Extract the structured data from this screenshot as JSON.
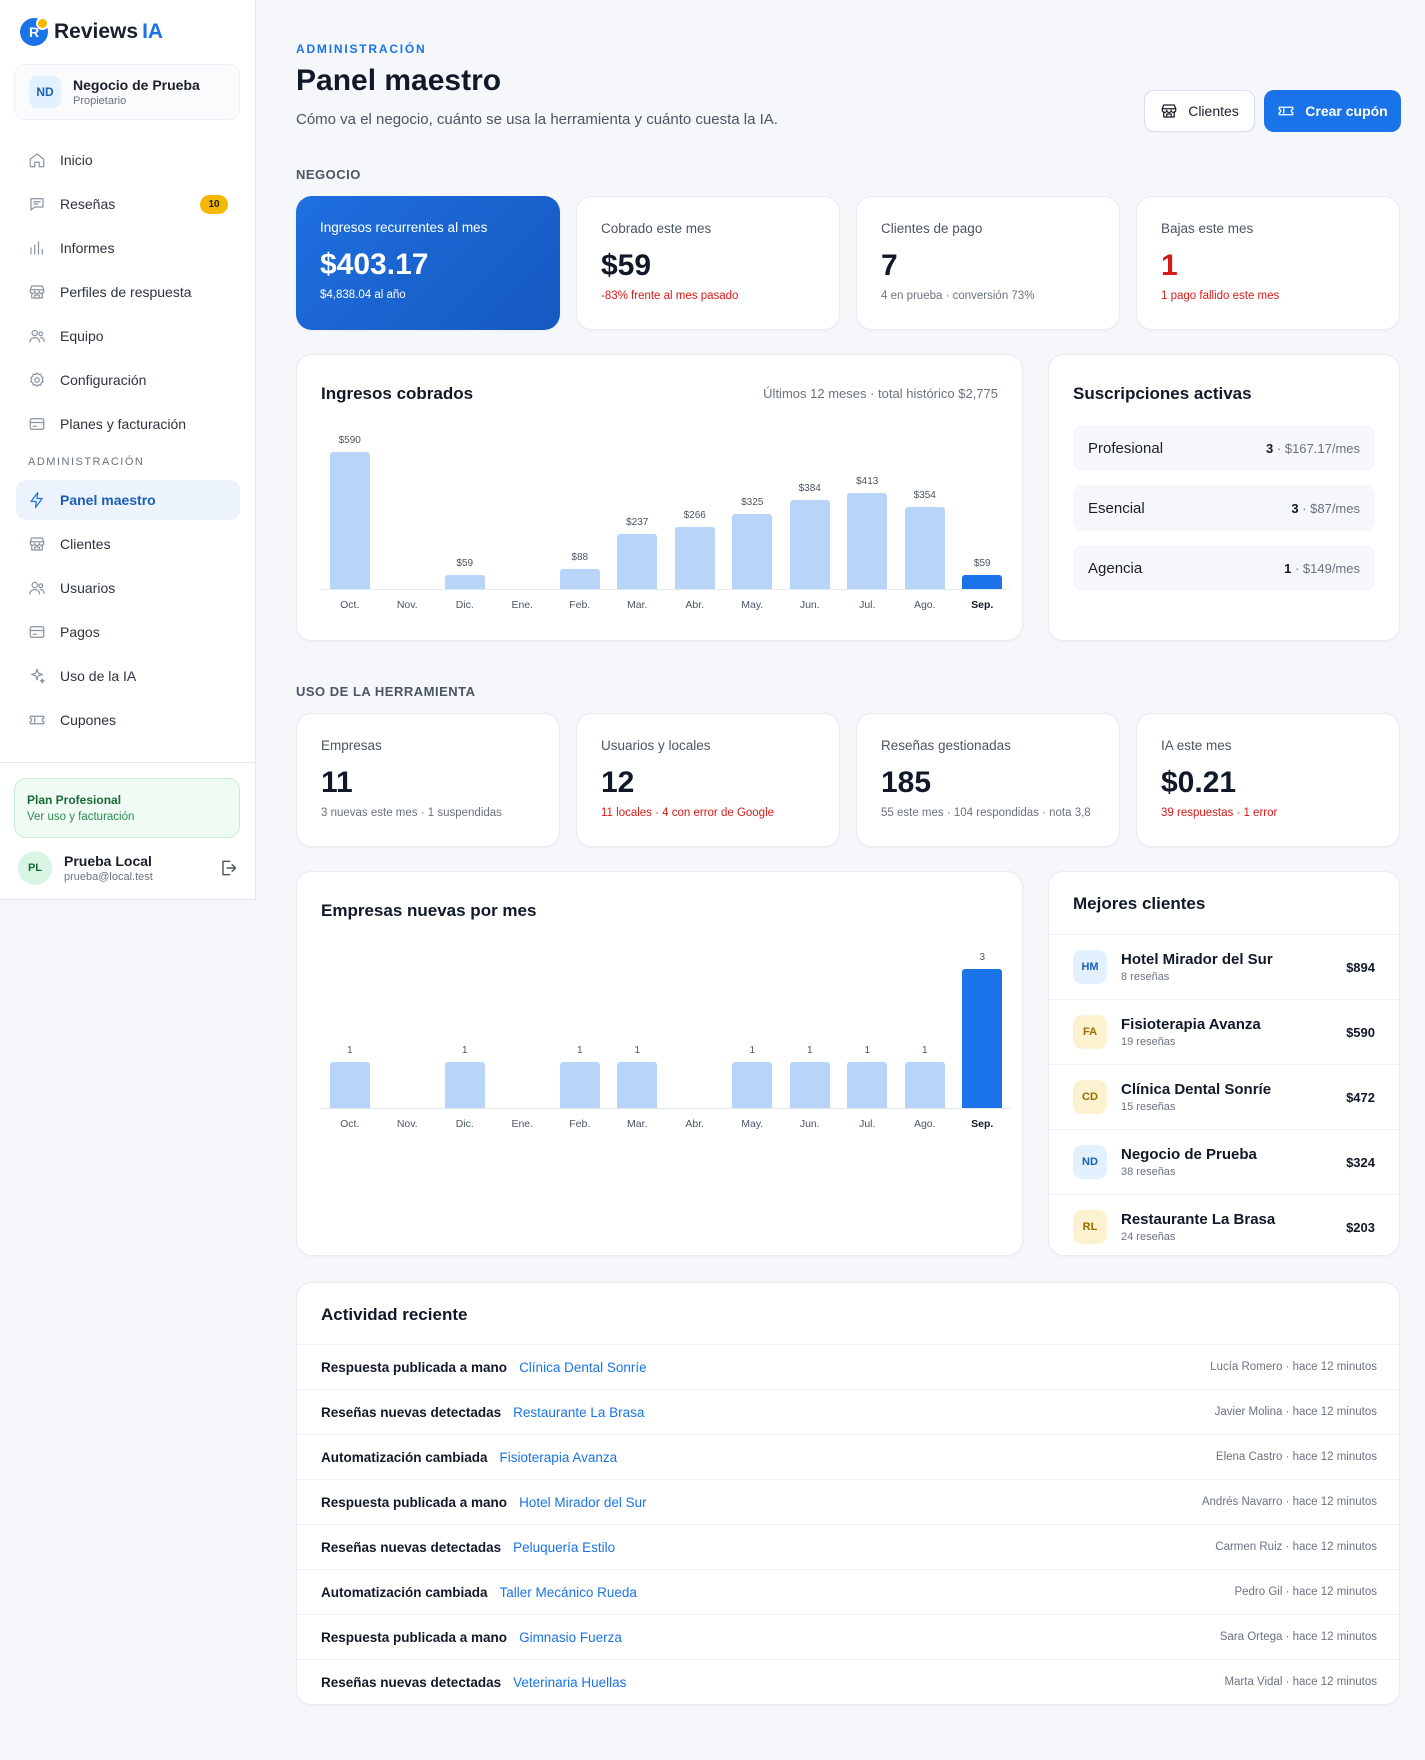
{
  "brand": {
    "name": "Reviews",
    "accent": "IA",
    "logo_letter": "R"
  },
  "business": {
    "initials": "ND",
    "name": "Negocio de Prueba",
    "role": "Propietario"
  },
  "nav": {
    "items": [
      {
        "label": "Inicio",
        "icon": "home-icon"
      },
      {
        "label": "Reseñas",
        "icon": "message-icon",
        "badge": "10"
      },
      {
        "label": "Informes",
        "icon": "bar-chart-icon"
      },
      {
        "label": "Perfiles de respuesta",
        "icon": "store-icon"
      },
      {
        "label": "Equipo",
        "icon": "users-icon"
      },
      {
        "label": "Configuración",
        "icon": "gear-icon"
      },
      {
        "label": "Planes y facturación",
        "icon": "card-icon"
      }
    ],
    "admin_label": "ADMINISTRACIÓN",
    "admin_items": [
      {
        "label": "Panel maestro",
        "icon": "bolt-icon",
        "active": true
      },
      {
        "label": "Clientes",
        "icon": "store-icon"
      },
      {
        "label": "Usuarios",
        "icon": "users-icon"
      },
      {
        "label": "Pagos",
        "icon": "card-icon"
      },
      {
        "label": "Uso de la IA",
        "icon": "sparkle-icon"
      },
      {
        "label": "Cupones",
        "icon": "ticket-icon"
      }
    ]
  },
  "plan": {
    "title": "Plan Profesional",
    "link": "Ver uso y facturación"
  },
  "user": {
    "initials": "PL",
    "name": "Prueba Local",
    "email": "prueba@local.test"
  },
  "header": {
    "eyebrow": "ADMINISTRACIÓN",
    "title": "Panel maestro",
    "subtitle": "Cómo va el negocio, cuánto se usa la herramienta y cuánto cuesta la IA.",
    "btn_clients": "Clientes",
    "btn_coupon": "Crear cupón"
  },
  "sections": {
    "business": "NEGOCIO",
    "usage": "USO DE LA HERRAMIENTA"
  },
  "kpi_business": [
    {
      "label": "Ingresos recurrentes al mes",
      "value": "$403.17",
      "sub": "$4,838.04 al año"
    },
    {
      "label": "Cobrado este mes",
      "value": "$59",
      "sub": "-83% frente al mes pasado"
    },
    {
      "label": "Clientes de pago",
      "value": "7",
      "sub": "4 en prueba · conversión 73%"
    },
    {
      "label": "Bajas este mes",
      "value": "1",
      "sub": "1 pago fallido este mes"
    }
  ],
  "kpi_usage": [
    {
      "label": "Empresas",
      "value": "11",
      "sub": "3 nuevas este mes · 1 suspendidas"
    },
    {
      "label": "Usuarios y locales",
      "value": "12",
      "sub": "11 locales · 4 con error de Google"
    },
    {
      "label": "Reseñas gestionadas",
      "value": "185",
      "sub": "55 este mes · 104 respondidas · nota 3,8"
    },
    {
      "label": "IA este mes",
      "value": "$0.21",
      "sub": "39 respuestas · 1 error"
    }
  ],
  "revenue_card": {
    "title": "Ingresos cobrados",
    "meta": "Últimos 12 meses · total histórico $2,775"
  },
  "companies_card": {
    "title": "Empresas nuevas por mes"
  },
  "chart_data": [
    {
      "type": "bar",
      "title": "Ingresos cobrados",
      "categories": [
        "Oct.",
        "Nov.",
        "Dic.",
        "Ene.",
        "Feb.",
        "Mar.",
        "Abr.",
        "May.",
        "Jun.",
        "Jul.",
        "Ago.",
        "Sep."
      ],
      "values": [
        590,
        0,
        59,
        0,
        88,
        237,
        266,
        325,
        384,
        413,
        354,
        59
      ],
      "labels": [
        "$590",
        "",
        "$59",
        "",
        "$88",
        "$237",
        "$266",
        "$325",
        "$384",
        "$413",
        "$354",
        "$59"
      ],
      "highlight_index": 11,
      "ylim": [
        0,
        590
      ]
    },
    {
      "type": "bar",
      "title": "Empresas nuevas por mes",
      "categories": [
        "Oct.",
        "Nov.",
        "Dic.",
        "Ene.",
        "Feb.",
        "Mar.",
        "Abr.",
        "May.",
        "Jun.",
        "Jul.",
        "Ago.",
        "Sep."
      ],
      "values": [
        1,
        0,
        1,
        0,
        1,
        1,
        0,
        1,
        1,
        1,
        1,
        3
      ],
      "labels": [
        "1",
        "",
        "1",
        "",
        "1",
        "1",
        "",
        "1",
        "1",
        "1",
        "1",
        "3"
      ],
      "highlight_index": 11,
      "ylim": [
        0,
        3
      ]
    }
  ],
  "subscriptions": {
    "title": "Suscripciones activas",
    "rows": [
      {
        "name": "Profesional",
        "count": "3",
        "price": " · $167.17/mes"
      },
      {
        "name": "Esencial",
        "count": "3",
        "price": " · $87/mes"
      },
      {
        "name": "Agencia",
        "count": "1",
        "price": " · $149/mes"
      }
    ]
  },
  "top_clients": {
    "title": "Mejores clientes",
    "rows": [
      {
        "initials": "HM",
        "name": "Hotel Mirador del Sur",
        "reviews": "8 reseñas",
        "amount": "$894",
        "tone": "b"
      },
      {
        "initials": "FA",
        "name": "Fisioterapia Avanza",
        "reviews": "19 reseñas",
        "amount": "$590",
        "tone": "y"
      },
      {
        "initials": "CD",
        "name": "Clínica Dental Sonríe",
        "reviews": "15 reseñas",
        "amount": "$472",
        "tone": "y"
      },
      {
        "initials": "ND",
        "name": "Negocio de Prueba",
        "reviews": "38 reseñas",
        "amount": "$324",
        "tone": "b"
      },
      {
        "initials": "RL",
        "name": "Restaurante La Brasa",
        "reviews": "24 reseñas",
        "amount": "$203",
        "tone": "y"
      }
    ]
  },
  "activity": {
    "title": "Actividad reciente",
    "rows": [
      {
        "action": "Respuesta publicada a mano",
        "client": "Clínica Dental Sonríe",
        "meta": "Lucía Romero · hace 12 minutos"
      },
      {
        "action": "Reseñas nuevas detectadas",
        "client": "Restaurante La Brasa",
        "meta": "Javier Molina · hace 12 minutos"
      },
      {
        "action": "Automatización cambiada",
        "client": "Fisioterapia Avanza",
        "meta": "Elena Castro · hace 12 minutos"
      },
      {
        "action": "Respuesta publicada a mano",
        "client": "Hotel Mirador del Sur",
        "meta": "Andrés Navarro · hace 12 minutos"
      },
      {
        "action": "Reseñas nuevas detectadas",
        "client": "Peluquería Estilo",
        "meta": "Carmen Ruiz · hace 12 minutos"
      },
      {
        "action": "Automatización cambiada",
        "client": "Taller Mecánico Rueda",
        "meta": "Pedro Gil · hace 12 minutos"
      },
      {
        "action": "Respuesta publicada a mano",
        "client": "Gimnasio Fuerza",
        "meta": "Sara Ortega · hace 12 minutos"
      },
      {
        "action": "Reseñas nuevas detectadas",
        "client": "Veterinaria Huellas",
        "meta": "Marta Vidal · hace 12 minutos"
      }
    ]
  },
  "colors": {
    "accent": "#1a73e8",
    "bar": "#b8d4f8",
    "danger": "#d91a1a",
    "badge": "#f5b800"
  }
}
